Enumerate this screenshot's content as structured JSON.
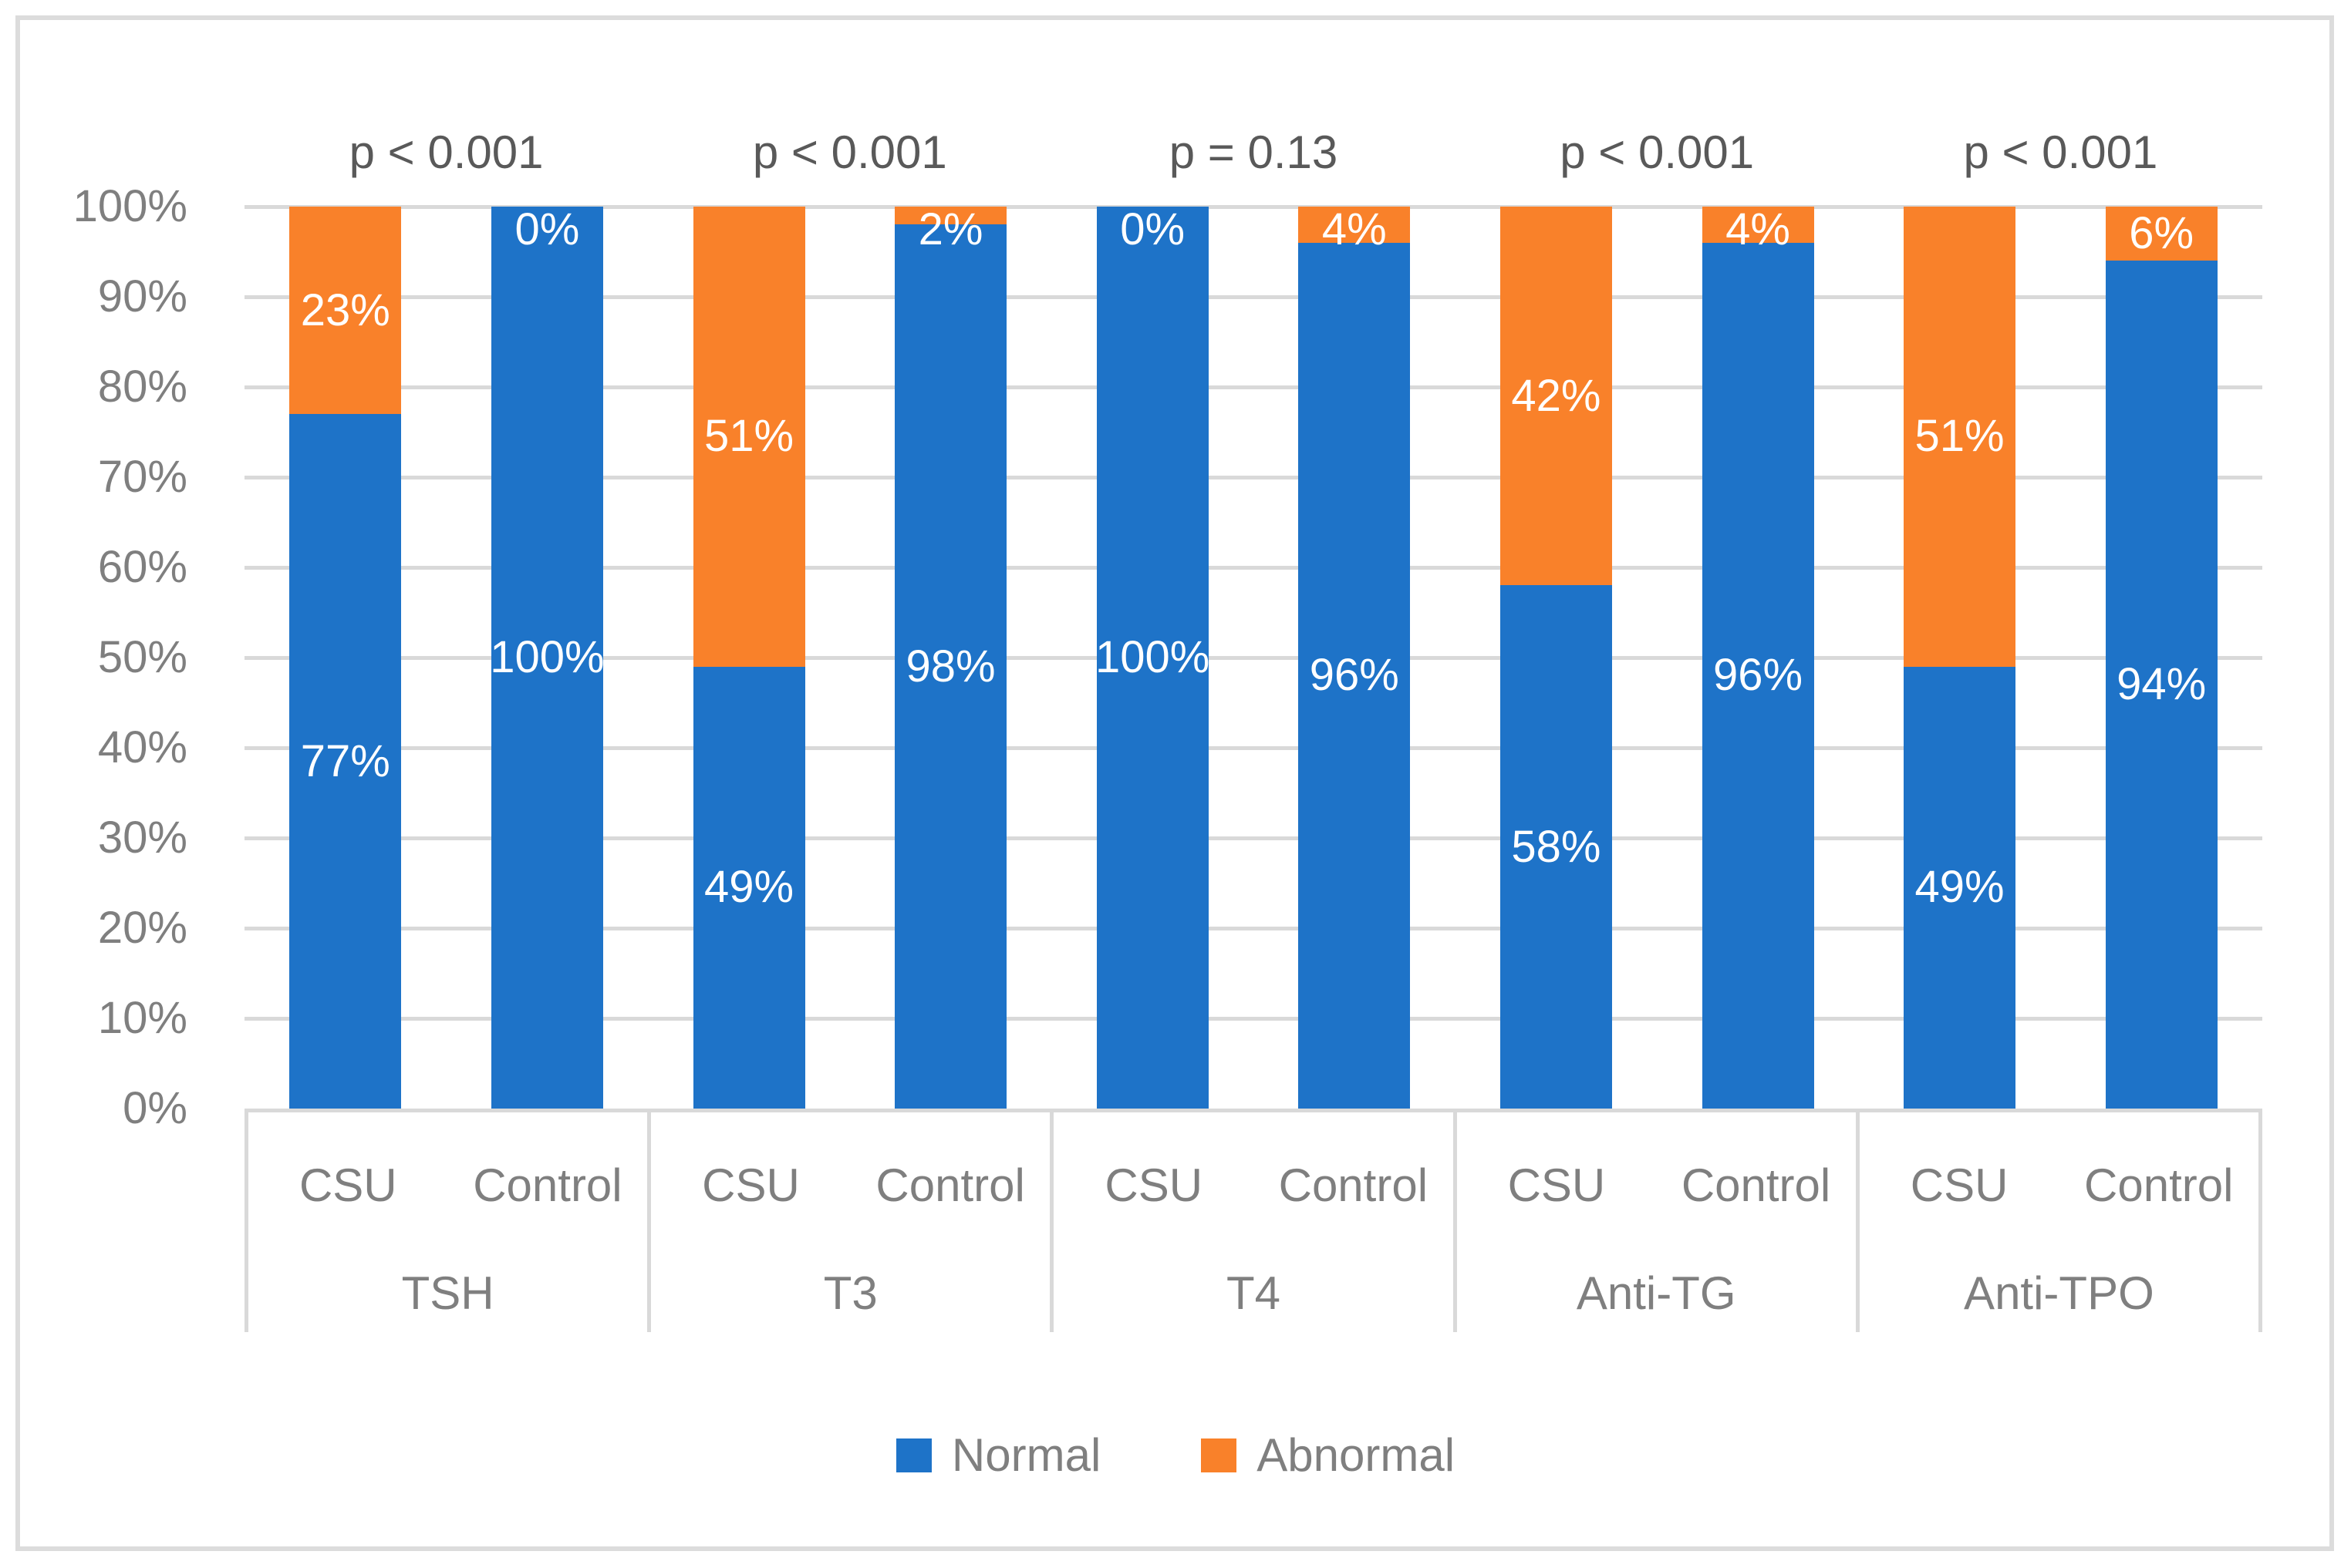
{
  "figure": {
    "background": "#ffffff",
    "border_color": "#DCDCDC"
  },
  "chart_data": {
    "type": "bar",
    "variant": "100%-stacked-column",
    "title": "",
    "xlabel": "",
    "ylabel": "",
    "y_axis": {
      "min": 0,
      "max": 100,
      "step": 10,
      "tick_labels": [
        "0%",
        "10%",
        "20%",
        "30%",
        "40%",
        "50%",
        "60%",
        "70%",
        "80%",
        "90%",
        "100%"
      ]
    },
    "grid": "horizontal",
    "legend_position": "bottom-center",
    "series_names": [
      "Normal",
      "Abnormal"
    ],
    "groups": [
      {
        "label": "TSH",
        "p_value": "p < 0.001",
        "bars": [
          {
            "label": "CSU",
            "normal": 77,
            "abnormal": 23,
            "normal_label": "77%",
            "abnormal_label": "23%"
          },
          {
            "label": "Control",
            "normal": 100,
            "abnormal": 0,
            "normal_label": "100%",
            "abnormal_label": "0%"
          }
        ]
      },
      {
        "label": "T3",
        "p_value": "p < 0.001",
        "bars": [
          {
            "label": "CSU",
            "normal": 49,
            "abnormal": 51,
            "normal_label": "49%",
            "abnormal_label": "51%"
          },
          {
            "label": "Control",
            "normal": 98,
            "abnormal": 2,
            "normal_label": "98%",
            "abnormal_label": "2%"
          }
        ]
      },
      {
        "label": "T4",
        "p_value": "p = 0.13",
        "bars": [
          {
            "label": "CSU",
            "normal": 100,
            "abnormal": 0,
            "normal_label": "100%",
            "abnormal_label": "0%"
          },
          {
            "label": "Control",
            "normal": 96,
            "abnormal": 4,
            "normal_label": "96%",
            "abnormal_label": "4%"
          }
        ]
      },
      {
        "label": "Anti-TG",
        "p_value": "p < 0.001",
        "bars": [
          {
            "label": "CSU",
            "normal": 58,
            "abnormal": 42,
            "normal_label": "58%",
            "abnormal_label": "42%"
          },
          {
            "label": "Control",
            "normal": 96,
            "abnormal": 4,
            "normal_label": "96%",
            "abnormal_label": "4%"
          }
        ]
      },
      {
        "label": "Anti-TPO",
        "p_value": "p < 0.001",
        "bars": [
          {
            "label": "CSU",
            "normal": 49,
            "abnormal": 51,
            "normal_label": "49%",
            "abnormal_label": "51%"
          },
          {
            "label": "Control",
            "normal": 94,
            "abnormal": 6,
            "normal_label": "94%",
            "abnormal_label": "6%"
          }
        ]
      }
    ],
    "legend": [
      {
        "label": "Normal",
        "color": "#1E73C8"
      },
      {
        "label": "Abnormal",
        "color": "#F9812A"
      }
    ],
    "colors": {
      "normal": "#1E73C8",
      "abnormal": "#F9812A",
      "gridline": "#D9D9D9",
      "axis_text": "#7F7F7F",
      "p_value_text": "#595959",
      "data_label_text": "#ffffff"
    }
  }
}
